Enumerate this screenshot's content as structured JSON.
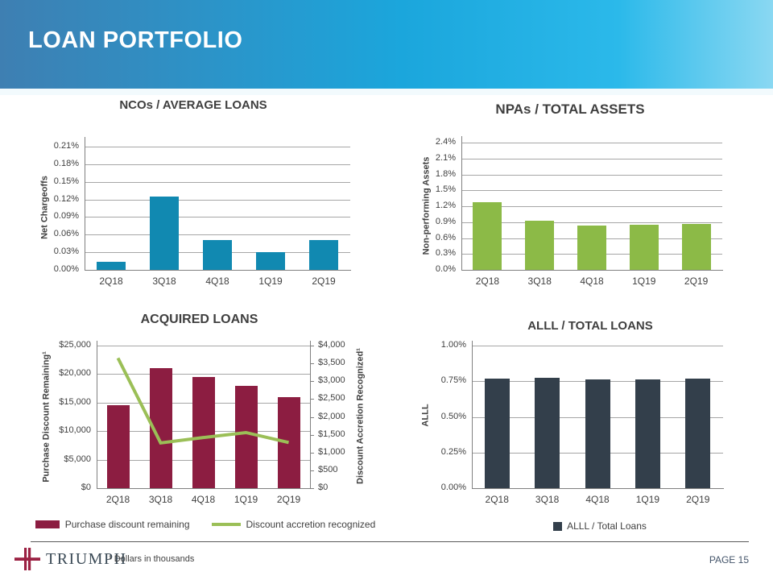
{
  "header": {
    "title": "LOAN PORTFOLIO"
  },
  "colors": {
    "hdr1": "#3E7FB2",
    "hdr2": "#1BA6DC",
    "hdr3": "#2BB9EA",
    "hdr4": "#8AD8F2",
    "blue": "#1189B1",
    "green": "#8CBA47",
    "maroon": "#8C1D41",
    "lineGreen": "#9BBF57",
    "dark": "#333F4B",
    "grid": "#A6A6A6",
    "axis": "#808080",
    "text": "#404040",
    "pageLabel": "#44546A",
    "logoNavy": "#3B4A56",
    "logoMaroon": "#9B2143"
  },
  "chart_data": [
    {
      "type": "bar",
      "title": "NCOs / AVERAGE LOANS",
      "ylabel": "Net Chargeoffs",
      "categories": [
        "2Q18",
        "3Q18",
        "4Q18",
        "1Q19",
        "2Q19"
      ],
      "values": [
        0.014,
        0.125,
        0.051,
        0.03,
        0.051
      ],
      "ylim": [
        0,
        0.21
      ],
      "yticks": [
        "0.00%",
        "0.03%",
        "0.06%",
        "0.09%",
        "0.12%",
        "0.15%",
        "0.18%",
        "0.21%"
      ],
      "bar_color_key": "blue",
      "legend_position": "none",
      "grid": "horizontal"
    },
    {
      "type": "bar",
      "title": "NPAs / TOTAL ASSETS",
      "ylabel": "Non-performing Assets",
      "categories": [
        "2Q18",
        "3Q18",
        "4Q18",
        "1Q19",
        "2Q19"
      ],
      "values": [
        1.27,
        0.92,
        0.83,
        0.85,
        0.86
      ],
      "ylim": [
        0,
        2.4
      ],
      "yticks": [
        "0.0%",
        "0.3%",
        "0.6%",
        "0.9%",
        "1.2%",
        "1.5%",
        "1.8%",
        "2.1%",
        "2.4%"
      ],
      "bar_color_key": "green",
      "legend_position": "none",
      "grid": "horizontal"
    },
    {
      "type": "combo",
      "title": "ACQUIRED LOANS",
      "ylabel_left": "Purchase Discount Remaining¹",
      "ylabel_right": "Discount Accretion Recognized¹",
      "categories": [
        "2Q18",
        "3Q18",
        "4Q18",
        "1Q19",
        "2Q19"
      ],
      "series": [
        {
          "name": "Purchase discount remaining",
          "kind": "bar",
          "axis": "left",
          "values": [
            14600,
            21000,
            19500,
            17900,
            16000
          ],
          "color_key": "maroon"
        },
        {
          "name": "Discount accretion recognized",
          "kind": "line",
          "axis": "right",
          "values": [
            3650,
            1270,
            1420,
            1560,
            1280
          ],
          "color_key": "lineGreen"
        }
      ],
      "ylim_left": [
        0,
        25000
      ],
      "ylim_right": [
        0,
        4000
      ],
      "yticks_left": [
        "$0",
        "$5,000",
        "$10,000",
        "$15,000",
        "$20,000",
        "$25,000"
      ],
      "yticks_right": [
        "$0",
        "$500",
        "$1,000",
        "$1,500",
        "$2,000",
        "$2,500",
        "$3,000",
        "$3,500",
        "$4,000"
      ],
      "legend_position": "bottom",
      "grid": "horizontal"
    },
    {
      "type": "bar",
      "title": "ALLL / TOTAL LOANS",
      "ylabel": "ALLL",
      "categories": [
        "2Q18",
        "3Q18",
        "4Q18",
        "1Q19",
        "2Q19"
      ],
      "values": [
        0.77,
        0.775,
        0.765,
        0.765,
        0.77
      ],
      "ylim": [
        0,
        1.0
      ],
      "yticks": [
        "0.00%",
        "0.25%",
        "0.50%",
        "0.75%",
        "1.00%"
      ],
      "bar_color_key": "dark",
      "legend": "ALLL / Total Loans",
      "legend_position": "bottom",
      "grid": "horizontal"
    }
  ],
  "footer": {
    "logo_text": "TRIUMPH",
    "footnote": "¹ Dollars in thousands",
    "page_label": "PAGE 15"
  }
}
